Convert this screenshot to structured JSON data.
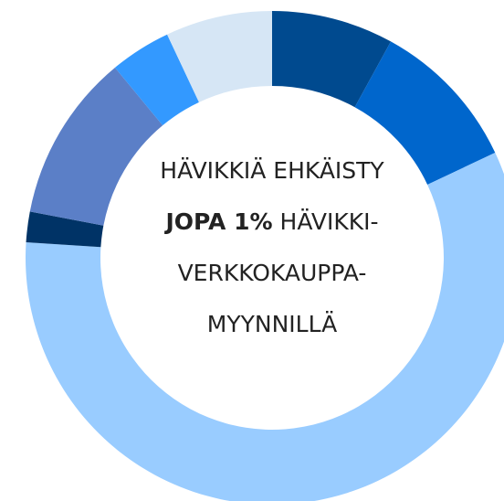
{
  "chart_data": {
    "type": "pie",
    "hole": true,
    "start": "top",
    "direction": "clockwise",
    "values": [
      8,
      10,
      58,
      2,
      11,
      4,
      7
    ],
    "colors": [
      "#004a8f",
      "#0066cc",
      "#99ccff",
      "#003366",
      "#5b7fc7",
      "#3399ff",
      "#d6e6f5"
    ],
    "center_lines": [
      [
        {
          "text": "HÄVIKKIÄ EHKÄISTY",
          "bold": false
        }
      ],
      [
        {
          "text": "JOPA 1%",
          "bold": true
        },
        {
          "text": "HÄVIKKI-",
          "bold": false
        }
      ],
      [
        {
          "text": "VERKKOKAUPPA-",
          "bold": false
        }
      ],
      [
        {
          "text": "MYYNNILLÄ",
          "bold": false
        }
      ]
    ]
  }
}
